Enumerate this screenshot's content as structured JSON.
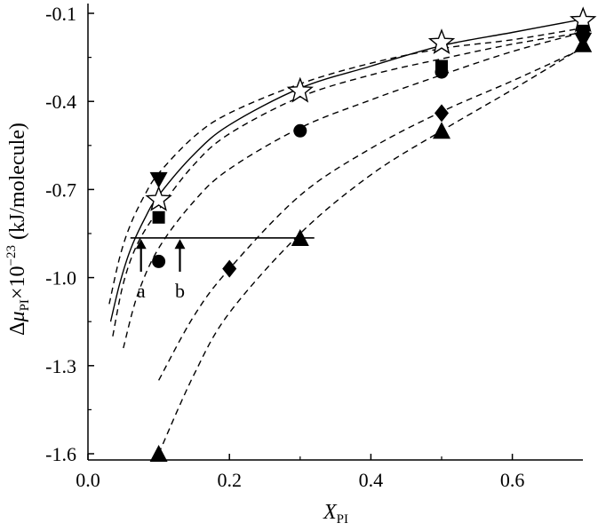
{
  "chart_data": {
    "type": "scatter",
    "title": "",
    "xlabel": {
      "main": "X",
      "sub": "PI"
    },
    "ylabel": {
      "delta": "Δ",
      "mu": "μ",
      "sub": "PI",
      "times": "×10",
      "exp": "−23",
      "unit": " (kJ/molecule)"
    },
    "xlim": [
      0.0,
      0.7
    ],
    "ylim": [
      -1.6,
      -0.1
    ],
    "x_ticks": [
      0.0,
      0.2,
      0.4,
      0.6
    ],
    "x_tick_labels": [
      "0.0",
      "0.2",
      "0.4",
      "0.6"
    ],
    "y_ticks": [
      -0.1,
      -0.4,
      -0.7,
      -1.0,
      -1.3,
      -1.6
    ],
    "y_tick_labels": [
      "-0.1",
      "-0.4",
      "-0.7",
      "-1.0",
      "-1.3",
      "-1.6"
    ],
    "grid": false,
    "legend": "none",
    "series": [
      {
        "marker": "star-open",
        "points": [
          [
            0.1,
            -0.735
          ],
          [
            0.3,
            -0.365
          ],
          [
            0.5,
            -0.2
          ],
          [
            0.7,
            -0.125
          ]
        ]
      },
      {
        "marker": "triangle-down",
        "points": [
          [
            0.1,
            -0.665
          ],
          [
            0.7,
            -0.19
          ]
        ]
      },
      {
        "marker": "square",
        "points": [
          [
            0.1,
            -0.795
          ],
          [
            0.5,
            -0.28
          ],
          [
            0.7,
            -0.16
          ]
        ]
      },
      {
        "marker": "circle",
        "points": [
          [
            0.1,
            -0.945
          ],
          [
            0.3,
            -0.5
          ],
          [
            0.5,
            -0.3
          ],
          [
            0.7,
            -0.165
          ]
        ]
      },
      {
        "marker": "diamond",
        "points": [
          [
            0.2,
            -0.97
          ],
          [
            0.5,
            -0.44
          ]
        ]
      },
      {
        "marker": "triangle-up",
        "points": [
          [
            0.1,
            -1.6
          ],
          [
            0.3,
            -0.865
          ],
          [
            0.5,
            -0.5
          ],
          [
            0.7,
            -0.205
          ]
        ]
      }
    ],
    "curves": [
      {
        "style": "solid",
        "x": [
          0.032,
          0.045,
          0.06,
          0.08,
          0.1,
          0.15,
          0.2,
          0.3,
          0.4,
          0.5,
          0.6,
          0.7
        ],
        "y": [
          -1.15,
          -1.02,
          -0.905,
          -0.8,
          -0.72,
          -0.58,
          -0.48,
          -0.355,
          -0.28,
          -0.21,
          -0.165,
          -0.12
        ]
      },
      {
        "style": "dashed",
        "x": [
          0.03,
          0.045,
          0.06,
          0.08,
          0.1,
          0.15,
          0.2,
          0.3,
          0.4,
          0.5,
          0.6,
          0.7
        ],
        "y": [
          -1.09,
          -0.93,
          -0.82,
          -0.72,
          -0.645,
          -0.52,
          -0.44,
          -0.34,
          -0.27,
          -0.22,
          -0.19,
          -0.15
        ]
      },
      {
        "style": "dashed",
        "x": [
          0.035,
          0.05,
          0.07,
          0.1,
          0.15,
          0.2,
          0.3,
          0.4,
          0.5,
          0.6,
          0.7
        ],
        "y": [
          -1.2,
          -1.02,
          -0.885,
          -0.77,
          -0.615,
          -0.51,
          -0.385,
          -0.31,
          -0.255,
          -0.205,
          -0.165
        ]
      },
      {
        "style": "dashed",
        "x": [
          0.05,
          0.07,
          0.1,
          0.15,
          0.2,
          0.3,
          0.4,
          0.5,
          0.6,
          0.7
        ],
        "y": [
          -1.24,
          -1.06,
          -0.9,
          -0.74,
          -0.63,
          -0.49,
          -0.395,
          -0.31,
          -0.23,
          -0.165
        ]
      },
      {
        "style": "dashed",
        "x": [
          0.1,
          0.15,
          0.2,
          0.3,
          0.4,
          0.5,
          0.6,
          0.7
        ],
        "y": [
          -1.35,
          -1.13,
          -0.97,
          -0.72,
          -0.56,
          -0.435,
          -0.33,
          -0.22
        ]
      },
      {
        "style": "dashed",
        "x": [
          0.1,
          0.15,
          0.2,
          0.3,
          0.4,
          0.5,
          0.6,
          0.7
        ],
        "y": [
          -1.6,
          -1.33,
          -1.12,
          -0.85,
          -0.65,
          -0.5,
          -0.36,
          -0.215
        ]
      }
    ],
    "reference_line": {
      "x": [
        0.06,
        0.32
      ],
      "y": -0.865
    },
    "annotations": [
      {
        "text": "a",
        "x": 0.075,
        "arrow_from": -0.98,
        "arrow_to": -0.875,
        "label_y": -1.02
      },
      {
        "text": "b",
        "x": 0.13,
        "arrow_from": -0.98,
        "arrow_to": -0.875,
        "label_y": -1.02
      }
    ]
  }
}
